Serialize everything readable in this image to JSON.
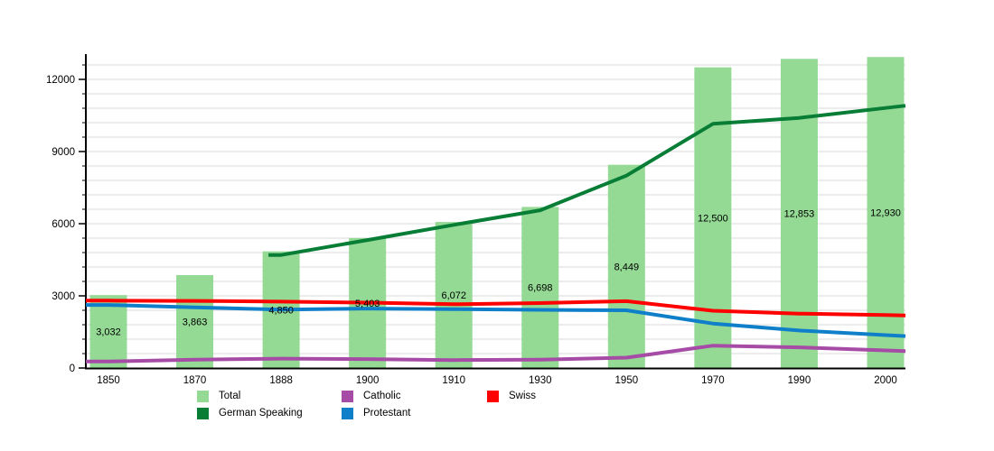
{
  "chart_data": {
    "type": "bar+line",
    "title": "",
    "categories": [
      "1850",
      "1870",
      "1888",
      "1900",
      "1910",
      "1930",
      "1950",
      "1970",
      "1990",
      "2000"
    ],
    "bars": {
      "name": "Total",
      "color": "#94da94",
      "values": [
        3032,
        3863,
        4850,
        5403,
        6072,
        6698,
        8449,
        12500,
        12853,
        12930
      ],
      "labels": [
        "3,032",
        "3,863",
        "4,850",
        "5,403",
        "6,072",
        "6,698",
        "8,449",
        "12,500",
        "12,853",
        "12,930"
      ]
    },
    "lines": [
      {
        "name": "German Speaking",
        "color": "#077d36",
        "values": [
          null,
          null,
          4700,
          5320,
          5950,
          6560,
          8000,
          10150,
          10400,
          10810
        ]
      },
      {
        "name": "Catholic",
        "color": "#a64ca6",
        "values": [
          270,
          350,
          390,
          370,
          330,
          350,
          430,
          930,
          860,
          730
        ]
      },
      {
        "name": "Protestant",
        "color": "#107fc9",
        "values": [
          2620,
          2520,
          2430,
          2470,
          2450,
          2420,
          2400,
          1850,
          1560,
          1370
        ]
      },
      {
        "name": "Swiss",
        "color": "#ff0000",
        "values": [
          2800,
          2790,
          2760,
          2720,
          2650,
          2700,
          2780,
          2380,
          2260,
          2200
        ]
      }
    ],
    "y_axis": {
      "tick_values": [
        0,
        3000,
        6000,
        9000,
        12000
      ],
      "tick_labels": [
        "0",
        "3000",
        "6000",
        "9000",
        "12000"
      ],
      "minor_step": 600,
      "max_gridline": 12600,
      "ylim": [
        0,
        13050
      ]
    },
    "grid": true,
    "legend_position": "bottom",
    "legend": {
      "items": [
        {
          "label": "Total",
          "color": "#94da94"
        },
        {
          "label": "German Speaking",
          "color": "#077d36"
        },
        {
          "label": "Catholic",
          "color": "#a64ca6"
        },
        {
          "label": "Protestant",
          "color": "#107fc9"
        },
        {
          "label": "Swiss",
          "color": "#ff0000"
        }
      ]
    },
    "colors": {
      "gridline": "#d9d9d9",
      "axis": "#000000",
      "label_text": "#000000"
    }
  }
}
